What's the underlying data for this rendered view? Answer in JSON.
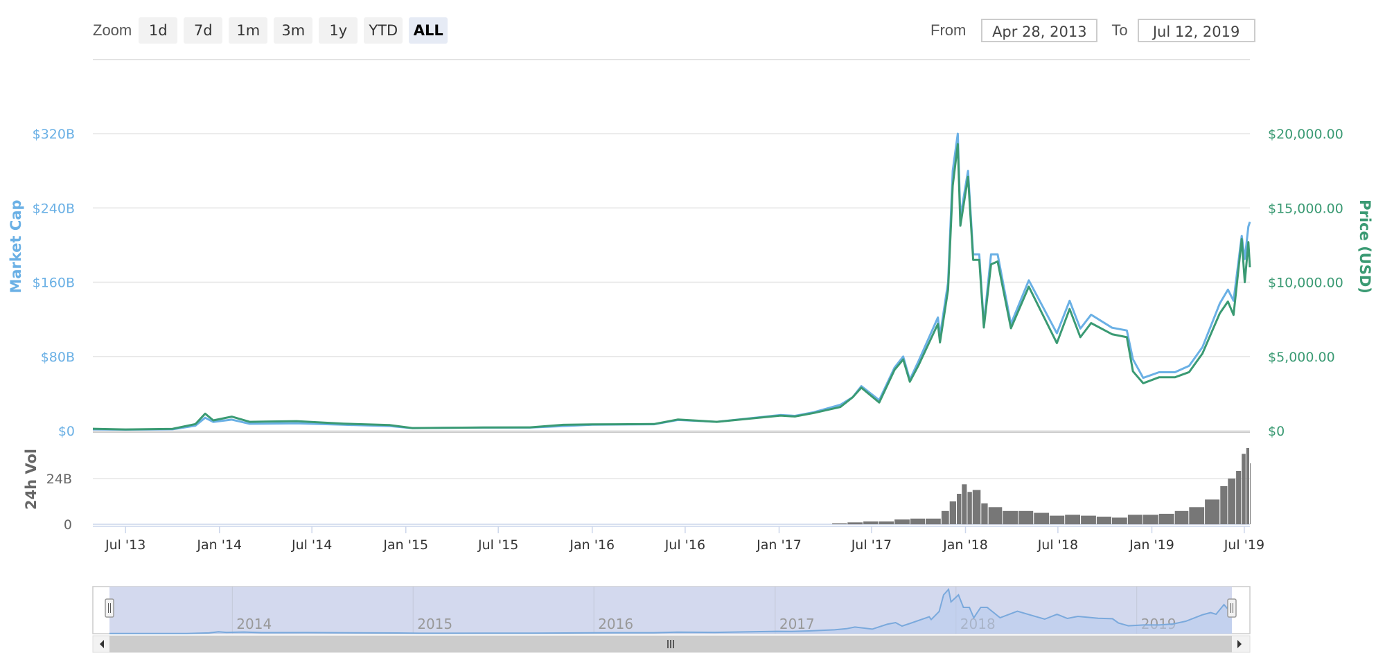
{
  "toolbar": {
    "zoom_label": "Zoom",
    "buttons": [
      "1d",
      "7d",
      "1m",
      "3m",
      "1y",
      "YTD",
      "ALL"
    ],
    "active": "ALL",
    "from_label": "From",
    "from_value": "Apr 28, 2013",
    "to_label": "To",
    "to_value": "Jul 12, 2019"
  },
  "colors": {
    "market_cap": "#6ab0e5",
    "price": "#3a9a73",
    "volume": "#777777",
    "navigator_fill": "#d3d9ee",
    "navigator_line": "#7aa9dc"
  },
  "chart_data": [
    {
      "type": "line",
      "title": "",
      "x_unit": "date",
      "xlim": [
        "2013-04-28",
        "2019-07-12"
      ],
      "x_tick_labels": [
        "Jul '13",
        "Jan '14",
        "Jul '14",
        "Jan '15",
        "Jul '15",
        "Jan '16",
        "Jul '16",
        "Jan '17",
        "Jul '17",
        "Jan '18",
        "Jul '18",
        "Jan '19",
        "Jul '19"
      ],
      "x_ticks": [
        "2013-07-01",
        "2014-01-01",
        "2014-07-01",
        "2015-01-01",
        "2015-07-01",
        "2016-01-01",
        "2016-07-01",
        "2017-01-01",
        "2017-07-01",
        "2018-01-01",
        "2018-07-01",
        "2019-01-01",
        "2019-07-01"
      ],
      "grid": true,
      "y_left": {
        "label": "Market Cap",
        "tick_labels": [
          "$0",
          "$80B",
          "$160B",
          "$240B",
          "$320B"
        ],
        "ticks": [
          0,
          80,
          160,
          240,
          320
        ],
        "unit": "billions USD",
        "ylim": [
          0,
          320
        ]
      },
      "y_right": {
        "label": "Price (USD)",
        "tick_labels": [
          "$0",
          "$5,000.00",
          "$10,000.00",
          "$15,000.00",
          "$20,000.00"
        ],
        "ticks": [
          0,
          5000,
          10000,
          15000,
          20000
        ],
        "ylim": [
          0,
          20000
        ]
      },
      "series": [
        {
          "name": "Market Cap",
          "axis": "left",
          "x": [
            "2013-04-28",
            "2013-07-01",
            "2013-10-01",
            "2013-11-15",
            "2013-12-04",
            "2013-12-20",
            "2014-01-25",
            "2014-03-01",
            "2014-06-01",
            "2014-09-01",
            "2014-12-01",
            "2015-01-14",
            "2015-06-01",
            "2015-09-01",
            "2015-11-05",
            "2016-01-01",
            "2016-05-01",
            "2016-06-17",
            "2016-09-01",
            "2017-01-04",
            "2017-02-01",
            "2017-03-10",
            "2017-05-01",
            "2017-05-25",
            "2017-06-11",
            "2017-07-16",
            "2017-08-15",
            "2017-09-01",
            "2017-09-14",
            "2017-10-01",
            "2017-11-08",
            "2017-11-12",
            "2017-11-28",
            "2017-12-07",
            "2017-12-17",
            "2017-12-22",
            "2018-01-06",
            "2018-01-16",
            "2018-01-28",
            "2018-02-06",
            "2018-02-20",
            "2018-03-05",
            "2018-03-31",
            "2018-05-05",
            "2018-06-29",
            "2018-07-24",
            "2018-08-14",
            "2018-09-04",
            "2018-10-15",
            "2018-11-13",
            "2018-11-25",
            "2018-12-15",
            "2019-01-15",
            "2019-02-15",
            "2019-03-15",
            "2019-04-10",
            "2019-05-14",
            "2019-05-30",
            "2019-06-10",
            "2019-06-26",
            "2019-07-02",
            "2019-07-09",
            "2019-07-12"
          ],
          "values": [
            1.5,
            1.2,
            1.6,
            5.5,
            14,
            9.5,
            12,
            7.5,
            8,
            6.5,
            5,
            2.8,
            3.4,
            3.4,
            5,
            6.5,
            7,
            11.6,
            9.6,
            17,
            16,
            20,
            28,
            36,
            48,
            33,
            68,
            80,
            55,
            75,
            122,
            102,
            160,
            280,
            320,
            230,
            280,
            190,
            190,
            115,
            190,
            190,
            115,
            162,
            105,
            140,
            110,
            125,
            111,
            108,
            77,
            57,
            63,
            63,
            70,
            90,
            137,
            152,
            140,
            210,
            185,
            220,
            225
          ]
        },
        {
          "name": "Price (USD)",
          "axis": "right",
          "x": [
            "2013-04-28",
            "2013-07-01",
            "2013-10-01",
            "2013-11-15",
            "2013-12-04",
            "2013-12-20",
            "2014-01-25",
            "2014-03-01",
            "2014-06-01",
            "2014-09-01",
            "2014-12-01",
            "2015-01-14",
            "2015-06-01",
            "2015-09-01",
            "2015-11-05",
            "2016-01-01",
            "2016-05-01",
            "2016-06-17",
            "2016-09-01",
            "2017-01-04",
            "2017-02-01",
            "2017-03-10",
            "2017-05-01",
            "2017-05-25",
            "2017-06-11",
            "2017-07-16",
            "2017-08-15",
            "2017-09-01",
            "2017-09-14",
            "2017-10-01",
            "2017-11-08",
            "2017-11-12",
            "2017-11-28",
            "2017-12-07",
            "2017-12-17",
            "2017-12-22",
            "2018-01-06",
            "2018-01-16",
            "2018-01-28",
            "2018-02-06",
            "2018-02-20",
            "2018-03-05",
            "2018-03-31",
            "2018-05-05",
            "2018-06-29",
            "2018-07-24",
            "2018-08-14",
            "2018-09-04",
            "2018-10-15",
            "2018-11-13",
            "2018-11-25",
            "2018-12-15",
            "2019-01-15",
            "2019-02-15",
            "2019-03-15",
            "2019-04-10",
            "2019-05-14",
            "2019-05-30",
            "2019-06-10",
            "2019-06-26",
            "2019-07-02",
            "2019-07-09",
            "2019-07-12"
          ],
          "values": [
            135,
            90,
            130,
            450,
            1150,
            700,
            950,
            600,
            650,
            480,
            380,
            180,
            225,
            230,
            400,
            430,
            450,
            760,
            600,
            1020,
            960,
            1200,
            1600,
            2250,
            2900,
            1900,
            4100,
            4800,
            3300,
            4400,
            7200,
            5950,
            9500,
            16500,
            19300,
            13800,
            17100,
            11500,
            11500,
            6950,
            11200,
            11400,
            6900,
            9700,
            5900,
            8200,
            6300,
            7250,
            6500,
            6300,
            4000,
            3200,
            3600,
            3600,
            3950,
            5200,
            7900,
            8700,
            7800,
            12900,
            10000,
            12700,
            11000
          ]
        }
      ]
    },
    {
      "type": "bar",
      "title": "",
      "series_name": "24h Vol",
      "y_axis": {
        "label": "24h Vol",
        "tick_labels": [
          "0",
          "24B"
        ],
        "ticks": [
          0,
          24
        ],
        "unit": "billions USD",
        "ylim": [
          0,
          48
        ]
      },
      "x": [
        "2017-04-15",
        "2017-05-15",
        "2017-06-15",
        "2017-07-15",
        "2017-08-15",
        "2017-09-15",
        "2017-10-15",
        "2017-11-15",
        "2017-12-01",
        "2017-12-15",
        "2017-12-25",
        "2018-01-05",
        "2018-01-15",
        "2018-02-01",
        "2018-02-15",
        "2018-03-15",
        "2018-04-15",
        "2018-05-15",
        "2018-06-15",
        "2018-07-15",
        "2018-08-15",
        "2018-09-15",
        "2018-10-15",
        "2018-11-15",
        "2018-12-15",
        "2019-01-15",
        "2019-02-15",
        "2019-03-15",
        "2019-04-15",
        "2019-05-15",
        "2019-05-30",
        "2019-06-15",
        "2019-06-26",
        "2019-07-05",
        "2019-07-12"
      ],
      "values": [
        0.5,
        1,
        1.5,
        1.5,
        2.5,
        3,
        3,
        7,
        12,
        16,
        21,
        17,
        18,
        11,
        9,
        7,
        7,
        6,
        4.5,
        5,
        4.5,
        4,
        3.5,
        5,
        5,
        5.5,
        7,
        9,
        13,
        20,
        24,
        28,
        37,
        40,
        32
      ]
    }
  ],
  "navigator": {
    "year_labels": [
      "2014",
      "2015",
      "2016",
      "2017",
      "2018",
      "2019"
    ],
    "year_ticks": [
      "2014-01-01",
      "2015-01-01",
      "2016-01-01",
      "2017-01-01",
      "2018-01-01",
      "2019-01-01"
    ],
    "selected_range": [
      "2013-04-28",
      "2019-07-12"
    ]
  }
}
